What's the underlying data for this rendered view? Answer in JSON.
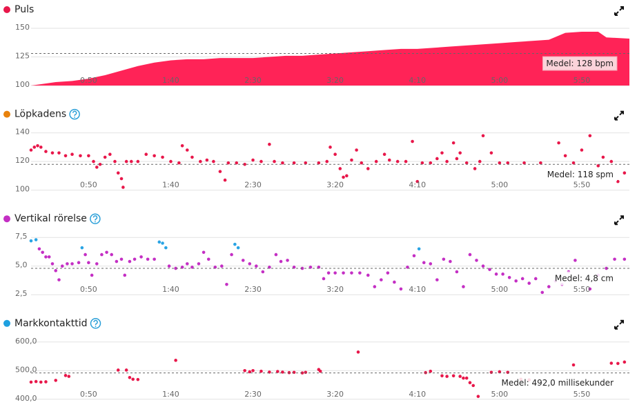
{
  "chart_data": [
    {
      "type": "area",
      "title": "Puls",
      "title_color": "#e8174a",
      "help": false,
      "color": "#ff2357",
      "xlim": [
        15,
        379
      ],
      "xticks": [
        {
          "value": 50,
          "label": "0:50"
        },
        {
          "value": 100,
          "label": "1:40"
        },
        {
          "value": 150,
          "label": "2:30"
        },
        {
          "value": 200,
          "label": "3:20"
        },
        {
          "value": 250,
          "label": "4:10"
        },
        {
          "value": 300,
          "label": "5:00"
        },
        {
          "value": 350,
          "label": "5:50"
        }
      ],
      "ylim": [
        100,
        150
      ],
      "yticks": [
        100,
        125,
        150
      ],
      "mean": {
        "value": 128,
        "label": "Medel: 128 bpm"
      },
      "x": [
        15,
        20,
        30,
        40,
        50,
        60,
        70,
        80,
        90,
        100,
        110,
        120,
        130,
        140,
        150,
        160,
        170,
        180,
        190,
        200,
        210,
        220,
        230,
        240,
        250,
        260,
        270,
        280,
        290,
        300,
        310,
        320,
        330,
        340,
        350,
        360,
        365,
        379
      ],
      "values": [
        100,
        101,
        103,
        104,
        106,
        109,
        113,
        117,
        120,
        122,
        123,
        123,
        124,
        124,
        124,
        125,
        126,
        126,
        127,
        128,
        129,
        130,
        131,
        132,
        132,
        133,
        134,
        135,
        136,
        137,
        138,
        139,
        140,
        146,
        147,
        147,
        142,
        141
      ]
    },
    {
      "type": "scatter",
      "title": "Löpkadens",
      "title_color": "#e8820c",
      "help": true,
      "color": "#e8174a",
      "xlim": [
        15,
        379
      ],
      "xticks": [
        {
          "value": 50,
          "label": "0:50"
        },
        {
          "value": 100,
          "label": "1:40"
        },
        {
          "value": 150,
          "label": "2:30"
        },
        {
          "value": 200,
          "label": "3:20"
        },
        {
          "value": 250,
          "label": "4:10"
        },
        {
          "value": 300,
          "label": "5:00"
        },
        {
          "value": 350,
          "label": "5:50"
        }
      ],
      "ylim": [
        100,
        140
      ],
      "yticks": [
        100,
        120,
        140
      ],
      "mean": {
        "value": 118,
        "label": "Medel: 118 spm"
      },
      "x": [
        15,
        17,
        19,
        21,
        24,
        28,
        32,
        36,
        40,
        45,
        50,
        53,
        55,
        57,
        60,
        63,
        66,
        68,
        70,
        71,
        73,
        76,
        80,
        85,
        90,
        95,
        100,
        105,
        107,
        110,
        113,
        118,
        122,
        126,
        130,
        133,
        135,
        140,
        145,
        150,
        155,
        160,
        163,
        168,
        175,
        182,
        190,
        195,
        197,
        200,
        203,
        205,
        207,
        210,
        213,
        216,
        220,
        225,
        230,
        233,
        238,
        243,
        247,
        250,
        253,
        258,
        262,
        265,
        268,
        272,
        274,
        276,
        280,
        285,
        288,
        290,
        295,
        300,
        305,
        315,
        325,
        336,
        340,
        345,
        350,
        355,
        360,
        363,
        368,
        372,
        376
      ],
      "values": [
        128,
        130,
        131,
        130,
        127,
        126,
        126,
        124,
        125,
        124,
        124,
        120,
        116,
        118,
        123,
        125,
        120,
        112,
        108,
        102,
        120,
        120,
        120,
        125,
        124,
        123,
        120,
        119,
        131,
        128,
        123,
        120,
        121,
        120,
        113,
        107,
        119,
        119,
        118,
        121,
        120,
        132,
        120,
        119,
        119,
        119,
        119,
        120,
        130,
        125,
        115,
        109,
        110,
        121,
        128,
        119,
        115,
        120,
        125,
        121,
        120,
        120,
        134,
        106,
        119,
        119,
        122,
        126,
        120,
        133,
        122,
        126,
        119,
        115,
        120,
        138,
        126,
        119,
        119,
        119,
        119,
        133,
        124,
        119,
        128,
        138,
        117,
        123,
        120,
        106,
        112
      ]
    },
    {
      "type": "scatter",
      "title": "Vertikal rörelse",
      "title_color": "#c42fc4",
      "help": true,
      "color": "#c42fc4",
      "xlim": [
        15,
        379
      ],
      "xticks": [
        {
          "value": 50,
          "label": "0:50"
        },
        {
          "value": 100,
          "label": "1:40"
        },
        {
          "value": 150,
          "label": "2:30"
        },
        {
          "value": 200,
          "label": "3:20"
        },
        {
          "value": 250,
          "label": "4:10"
        },
        {
          "value": 300,
          "label": "5:00"
        },
        {
          "value": 350,
          "label": "5:50"
        }
      ],
      "ylim": [
        2.5,
        7.5
      ],
      "yticks": [
        {
          "value": 2.5,
          "label": "2,5"
        },
        {
          "value": 5,
          "label": "5,0"
        },
        {
          "value": 7.5,
          "label": "7,5"
        }
      ],
      "mean": {
        "value": 4.8,
        "label": "Medel: 4,8 cm"
      },
      "x": [
        15,
        18,
        20,
        22,
        24,
        26,
        28,
        30,
        32,
        34,
        37,
        40,
        44,
        46,
        48,
        50,
        52,
        55,
        58,
        61,
        64,
        67,
        70,
        72,
        75,
        78,
        82,
        86,
        90,
        93,
        95,
        97,
        99,
        103,
        107,
        110,
        113,
        117,
        120,
        123,
        127,
        131,
        134,
        137,
        139,
        141,
        144,
        148,
        152,
        156,
        160,
        164,
        167,
        171,
        175,
        180,
        185,
        190,
        193,
        196,
        200,
        205,
        210,
        215,
        220,
        224,
        228,
        232,
        236,
        240,
        244,
        248,
        251,
        254,
        258,
        262,
        266,
        270,
        274,
        278,
        282,
        286,
        290,
        294,
        298,
        302,
        306,
        310,
        314,
        318,
        322,
        326,
        330,
        334,
        338,
        342,
        346,
        355,
        360,
        365,
        370,
        376
      ],
      "values": [
        7.2,
        7.3,
        6.5,
        6.2,
        5.8,
        5.8,
        5.2,
        4.6,
        3.8,
        5.0,
        5.2,
        5.2,
        5.3,
        6.6,
        6.0,
        5.3,
        4.2,
        5.2,
        6.0,
        6.2,
        6.0,
        5.4,
        5.6,
        4.2,
        5.4,
        5.6,
        5.8,
        5.6,
        5.6,
        7.1,
        7.0,
        6.6,
        5.0,
        4.8,
        4.9,
        5.2,
        4.9,
        5.2,
        6.2,
        5.6,
        4.9,
        5.0,
        3.4,
        6.0,
        6.9,
        6.6,
        5.5,
        5.2,
        5.0,
        4.5,
        4.9,
        6.0,
        5.4,
        5.5,
        4.9,
        4.8,
        4.9,
        4.9,
        3.9,
        4.4,
        4.4,
        4.4,
        4.4,
        4.4,
        4.2,
        3.2,
        3.8,
        4.4,
        3.6,
        3.0,
        4.9,
        5.9,
        6.5,
        5.3,
        5.2,
        3.8,
        5.6,
        5.4,
        4.5,
        3.2,
        6.0,
        5.5,
        5.0,
        4.7,
        4.3,
        4.3,
        4.0,
        3.7,
        3.9,
        3.5,
        3.9,
        2.7,
        3.2,
        3.7,
        3.4,
        4.5,
        5.5,
        3.0,
        4.2,
        4.8,
        5.6,
        5.6
      ],
      "colors": [
        "#2aa4e4",
        "#2aa4e4",
        "#c42fc4",
        "#c42fc4",
        "#c42fc4",
        "#c42fc4",
        "#c42fc4",
        "#c42fc4",
        "#c42fc4",
        "#c42fc4",
        "#c42fc4",
        "#c42fc4",
        "#c42fc4",
        "#2aa4e4",
        "#c42fc4",
        "#c42fc4",
        "#c42fc4",
        "#c42fc4",
        "#c42fc4",
        "#c42fc4",
        "#c42fc4",
        "#c42fc4",
        "#c42fc4",
        "#c42fc4",
        "#c42fc4",
        "#c42fc4",
        "#c42fc4",
        "#c42fc4",
        "#c42fc4",
        "#2aa4e4",
        "#2aa4e4",
        "#2aa4e4",
        "#c42fc4",
        "#c42fc4",
        "#c42fc4",
        "#c42fc4",
        "#c42fc4",
        "#c42fc4",
        "#c42fc4",
        "#c42fc4",
        "#c42fc4",
        "#c42fc4",
        "#c42fc4",
        "#c42fc4",
        "#2aa4e4",
        "#2aa4e4",
        "#c42fc4",
        "#c42fc4",
        "#c42fc4",
        "#c42fc4",
        "#c42fc4",
        "#c42fc4",
        "#c42fc4",
        "#c42fc4",
        "#c42fc4",
        "#c42fc4",
        "#c42fc4",
        "#c42fc4",
        "#c42fc4",
        "#c42fc4",
        "#c42fc4",
        "#c42fc4",
        "#c42fc4",
        "#c42fc4",
        "#c42fc4",
        "#c42fc4",
        "#c42fc4",
        "#c42fc4",
        "#c42fc4",
        "#c42fc4",
        "#c42fc4",
        "#c42fc4",
        "#2aa4e4",
        "#c42fc4",
        "#c42fc4",
        "#c42fc4",
        "#c42fc4",
        "#c42fc4",
        "#c42fc4",
        "#c42fc4",
        "#c42fc4",
        "#c42fc4",
        "#c42fc4",
        "#c42fc4",
        "#c42fc4",
        "#c42fc4",
        "#c42fc4",
        "#c42fc4",
        "#c42fc4",
        "#c42fc4",
        "#c42fc4",
        "#c42fc4",
        "#c42fc4",
        "#c42fc4",
        "#c42fc4",
        "#c42fc4",
        "#c42fc4",
        "#c42fc4",
        "#c42fc4",
        "#c42fc4",
        "#c42fc4",
        "#c42fc4"
      ]
    },
    {
      "type": "scatter",
      "title": "Markkontakttid",
      "title_color": "#1ea0e0",
      "help": true,
      "color": "#e8174a",
      "xlim": [
        15,
        379
      ],
      "xticks": [
        {
          "value": 50,
          "label": "0:50"
        },
        {
          "value": 100,
          "label": "1:40"
        },
        {
          "value": 150,
          "label": "2:30"
        },
        {
          "value": 200,
          "label": "3:20"
        },
        {
          "value": 250,
          "label": "4:10"
        },
        {
          "value": 300,
          "label": "5:00"
        },
        {
          "value": 350,
          "label": "5:50"
        }
      ],
      "ylim": [
        400,
        600
      ],
      "yticks": [
        {
          "value": 400,
          "label": "400,0"
        },
        {
          "value": 500,
          "label": "500,0"
        },
        {
          "value": 600,
          "label": "600,0"
        }
      ],
      "mean": {
        "value": 492,
        "label": "Medel: 492,0 millisekunder"
      },
      "x": [
        15,
        18,
        21,
        24,
        30,
        36,
        38,
        68,
        73,
        75,
        77,
        80,
        103,
        145,
        148,
        150,
        155,
        160,
        165,
        168,
        172,
        175,
        180,
        182,
        190,
        191,
        214,
        255,
        258,
        265,
        268,
        272,
        276,
        278,
        280,
        282,
        284,
        287,
        295,
        300,
        305,
        313,
        318,
        345,
        368,
        372,
        376
      ],
      "values": [
        460,
        462,
        460,
        461,
        466,
        483,
        480,
        502,
        502,
        476,
        470,
        469,
        536,
        500,
        496,
        500,
        498,
        495,
        497,
        495,
        493,
        494,
        492,
        494,
        504,
        498,
        565,
        493,
        498,
        482,
        480,
        482,
        480,
        474,
        474,
        458,
        448,
        410,
        494,
        496,
        494,
        470,
        468,
        520,
        526,
        525,
        530
      ]
    }
  ]
}
